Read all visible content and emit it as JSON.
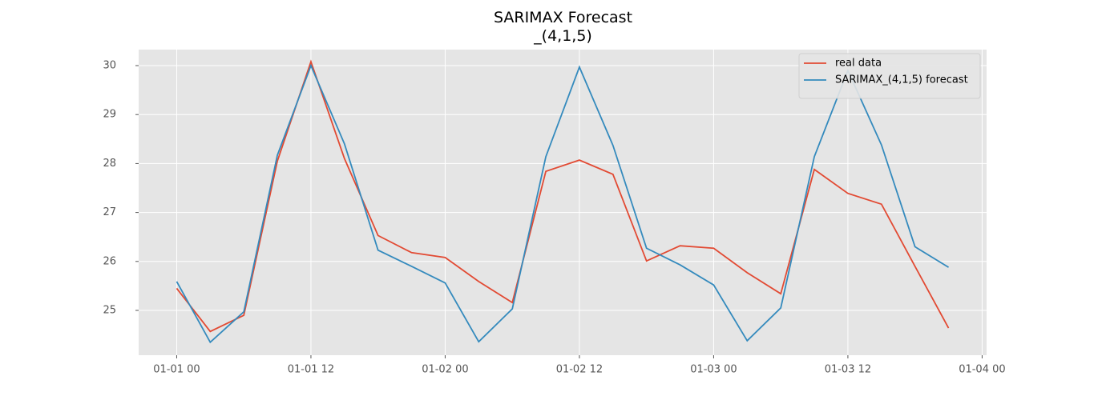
{
  "chart_data": {
    "type": "line",
    "title": "SARIMAX Forecast\n_(4,1,5)",
    "x": [
      0,
      3,
      6,
      9,
      12,
      15,
      18,
      21,
      24,
      27,
      30,
      33,
      36,
      39,
      42,
      45,
      48,
      51,
      54,
      57,
      60,
      63,
      66,
      69
    ],
    "series": [
      {
        "name": "real data",
        "color": "#e24a33",
        "values": [
          25.45,
          24.57,
          24.9,
          28.05,
          30.08,
          28.1,
          26.53,
          26.18,
          26.08,
          25.59,
          25.16,
          27.84,
          28.07,
          27.78,
          26.01,
          26.32,
          26.27,
          25.77,
          25.34,
          27.88,
          27.39,
          27.17,
          25.9,
          24.64
        ]
      },
      {
        "name": "SARIMAX_(4,1,5) forecast",
        "color": "#348abd",
        "values": [
          25.59,
          24.35,
          24.97,
          28.17,
          30.0,
          28.4,
          26.23,
          25.9,
          25.56,
          24.36,
          25.03,
          28.14,
          29.97,
          28.37,
          26.27,
          25.93,
          25.52,
          24.38,
          25.05,
          28.14,
          29.9,
          28.38,
          26.3,
          25.88
        ]
      }
    ],
    "xlim": [
      -3.4,
      72.4
    ],
    "xticks": [
      {
        "value": 0,
        "label": "01-01 00"
      },
      {
        "value": 12,
        "label": "01-01 12"
      },
      {
        "value": 24,
        "label": "01-02 00"
      },
      {
        "value": 36,
        "label": "01-02 12"
      },
      {
        "value": 48,
        "label": "01-03 00"
      },
      {
        "value": 60,
        "label": "01-03 12"
      },
      {
        "value": 72,
        "label": "01-04 00"
      }
    ],
    "ylim": [
      24.085,
      30.327
    ],
    "yticks": [
      25,
      26,
      27,
      28,
      29,
      30
    ],
    "grid": true,
    "legend": "upper-right"
  }
}
